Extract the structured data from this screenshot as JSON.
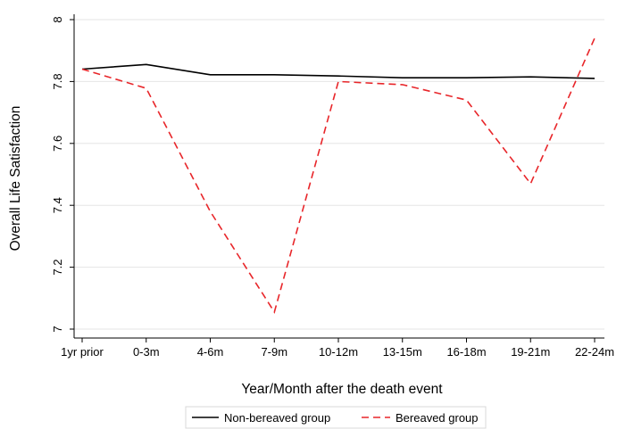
{
  "chart_data": {
    "type": "line",
    "xlabel": "Year/Month after the death event",
    "ylabel": "Overall Life Satisfaction",
    "categories": [
      "1yr prior",
      "0-3m",
      "4-6m",
      "7-9m",
      "10-12m",
      "13-15m",
      "16-18m",
      "19-21m",
      "22-24m"
    ],
    "ylim": [
      7,
      8
    ],
    "yticks": [
      "7",
      "7.2",
      "7.4",
      "7.6",
      "7.8",
      "8"
    ],
    "grid": true,
    "legend_position": "bottom",
    "series": [
      {
        "name": "Non-bereaved group",
        "color": "#000000",
        "style": "solid",
        "values": [
          7.84,
          7.855,
          7.822,
          7.822,
          7.818,
          7.812,
          7.812,
          7.815,
          7.81
        ]
      },
      {
        "name": "Bereaved group",
        "color": "#e8262a",
        "style": "dashed",
        "values": [
          7.84,
          7.778,
          7.38,
          7.055,
          7.8,
          7.79,
          7.74,
          7.47,
          7.94
        ]
      }
    ]
  }
}
